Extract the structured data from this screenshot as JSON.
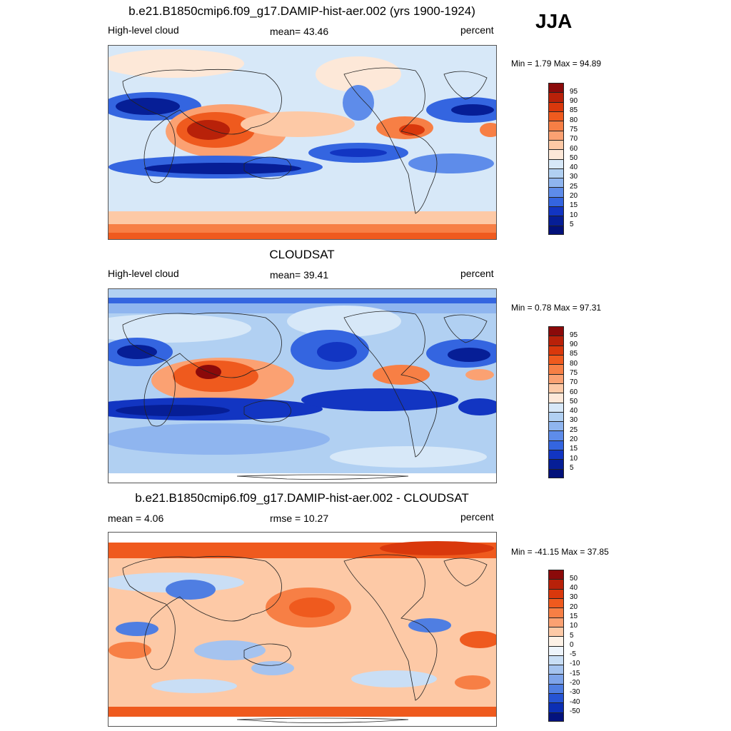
{
  "season": "JJA",
  "chart_data": [
    {
      "type": "heatmap",
      "title": "b.e21.B1850cmip6.f09_g17.DAMIP-hist-aer.002 (yrs 1900-1924)",
      "left_label": "High-level cloud",
      "center_label": "mean=  43.46",
      "right_label": "percent",
      "minmax_label": "Min =   1.79 Max =  94.89",
      "mean": 43.46,
      "min": 1.79,
      "max": 94.89,
      "colorbar_levels": [
        "95",
        "90",
        "85",
        "80",
        "75",
        "70",
        "60",
        "50",
        "40",
        "30",
        "25",
        "20",
        "15",
        "10",
        "5"
      ],
      "colorbar_colors": [
        "#8b0a0a",
        "#b82109",
        "#d9380c",
        "#ef5a1e",
        "#f77f45",
        "#fba172",
        "#fdc9a6",
        "#fde8d8",
        "#d7e8f8",
        "#b1d0f2",
        "#8fb5ef",
        "#5e8cea",
        "#3465e0",
        "#1235c2",
        "#061e96",
        "#02117a"
      ]
    },
    {
      "type": "heatmap",
      "title": "CLOUDSAT",
      "left_label": "High-level cloud",
      "center_label": "mean=  39.41",
      "right_label": "percent",
      "minmax_label": "Min =   0.78 Max =  97.31",
      "mean": 39.41,
      "min": 0.78,
      "max": 97.31,
      "colorbar_levels": [
        "95",
        "90",
        "85",
        "80",
        "75",
        "70",
        "60",
        "50",
        "40",
        "30",
        "25",
        "20",
        "15",
        "10",
        "5"
      ],
      "colorbar_colors": [
        "#8b0a0a",
        "#b82109",
        "#d9380c",
        "#ef5a1e",
        "#f77f45",
        "#fba172",
        "#fdc9a6",
        "#fde8d8",
        "#d7e8f8",
        "#b1d0f2",
        "#8fb5ef",
        "#5e8cea",
        "#3465e0",
        "#1235c2",
        "#061e96",
        "#02117a"
      ]
    },
    {
      "type": "heatmap",
      "title": "b.e21.B1850cmip6.f09_g17.DAMIP-hist-aer.002 - CLOUDSAT",
      "left_label": "mean =   4.06",
      "center_label": "rmse =  10.27",
      "right_label": "percent",
      "minmax_label": "Min = -41.15 Max =  37.85",
      "mean": 4.06,
      "rmse": 10.27,
      "min": -41.15,
      "max": 37.85,
      "colorbar_levels": [
        "50",
        "40",
        "30",
        "20",
        "15",
        "10",
        "5",
        "0",
        "-5",
        "-10",
        "-15",
        "-20",
        "-30",
        "-40",
        "-50"
      ],
      "colorbar_colors": [
        "#8b0a0a",
        "#b82109",
        "#d9380c",
        "#ef5a1e",
        "#f77f45",
        "#fba172",
        "#fdc9a6",
        "#fdf1e6",
        "#eef4fb",
        "#c9def5",
        "#a5c3ef",
        "#7ea4ea",
        "#4f7ee2",
        "#2654d4",
        "#0c2fb4",
        "#04137e"
      ]
    }
  ]
}
